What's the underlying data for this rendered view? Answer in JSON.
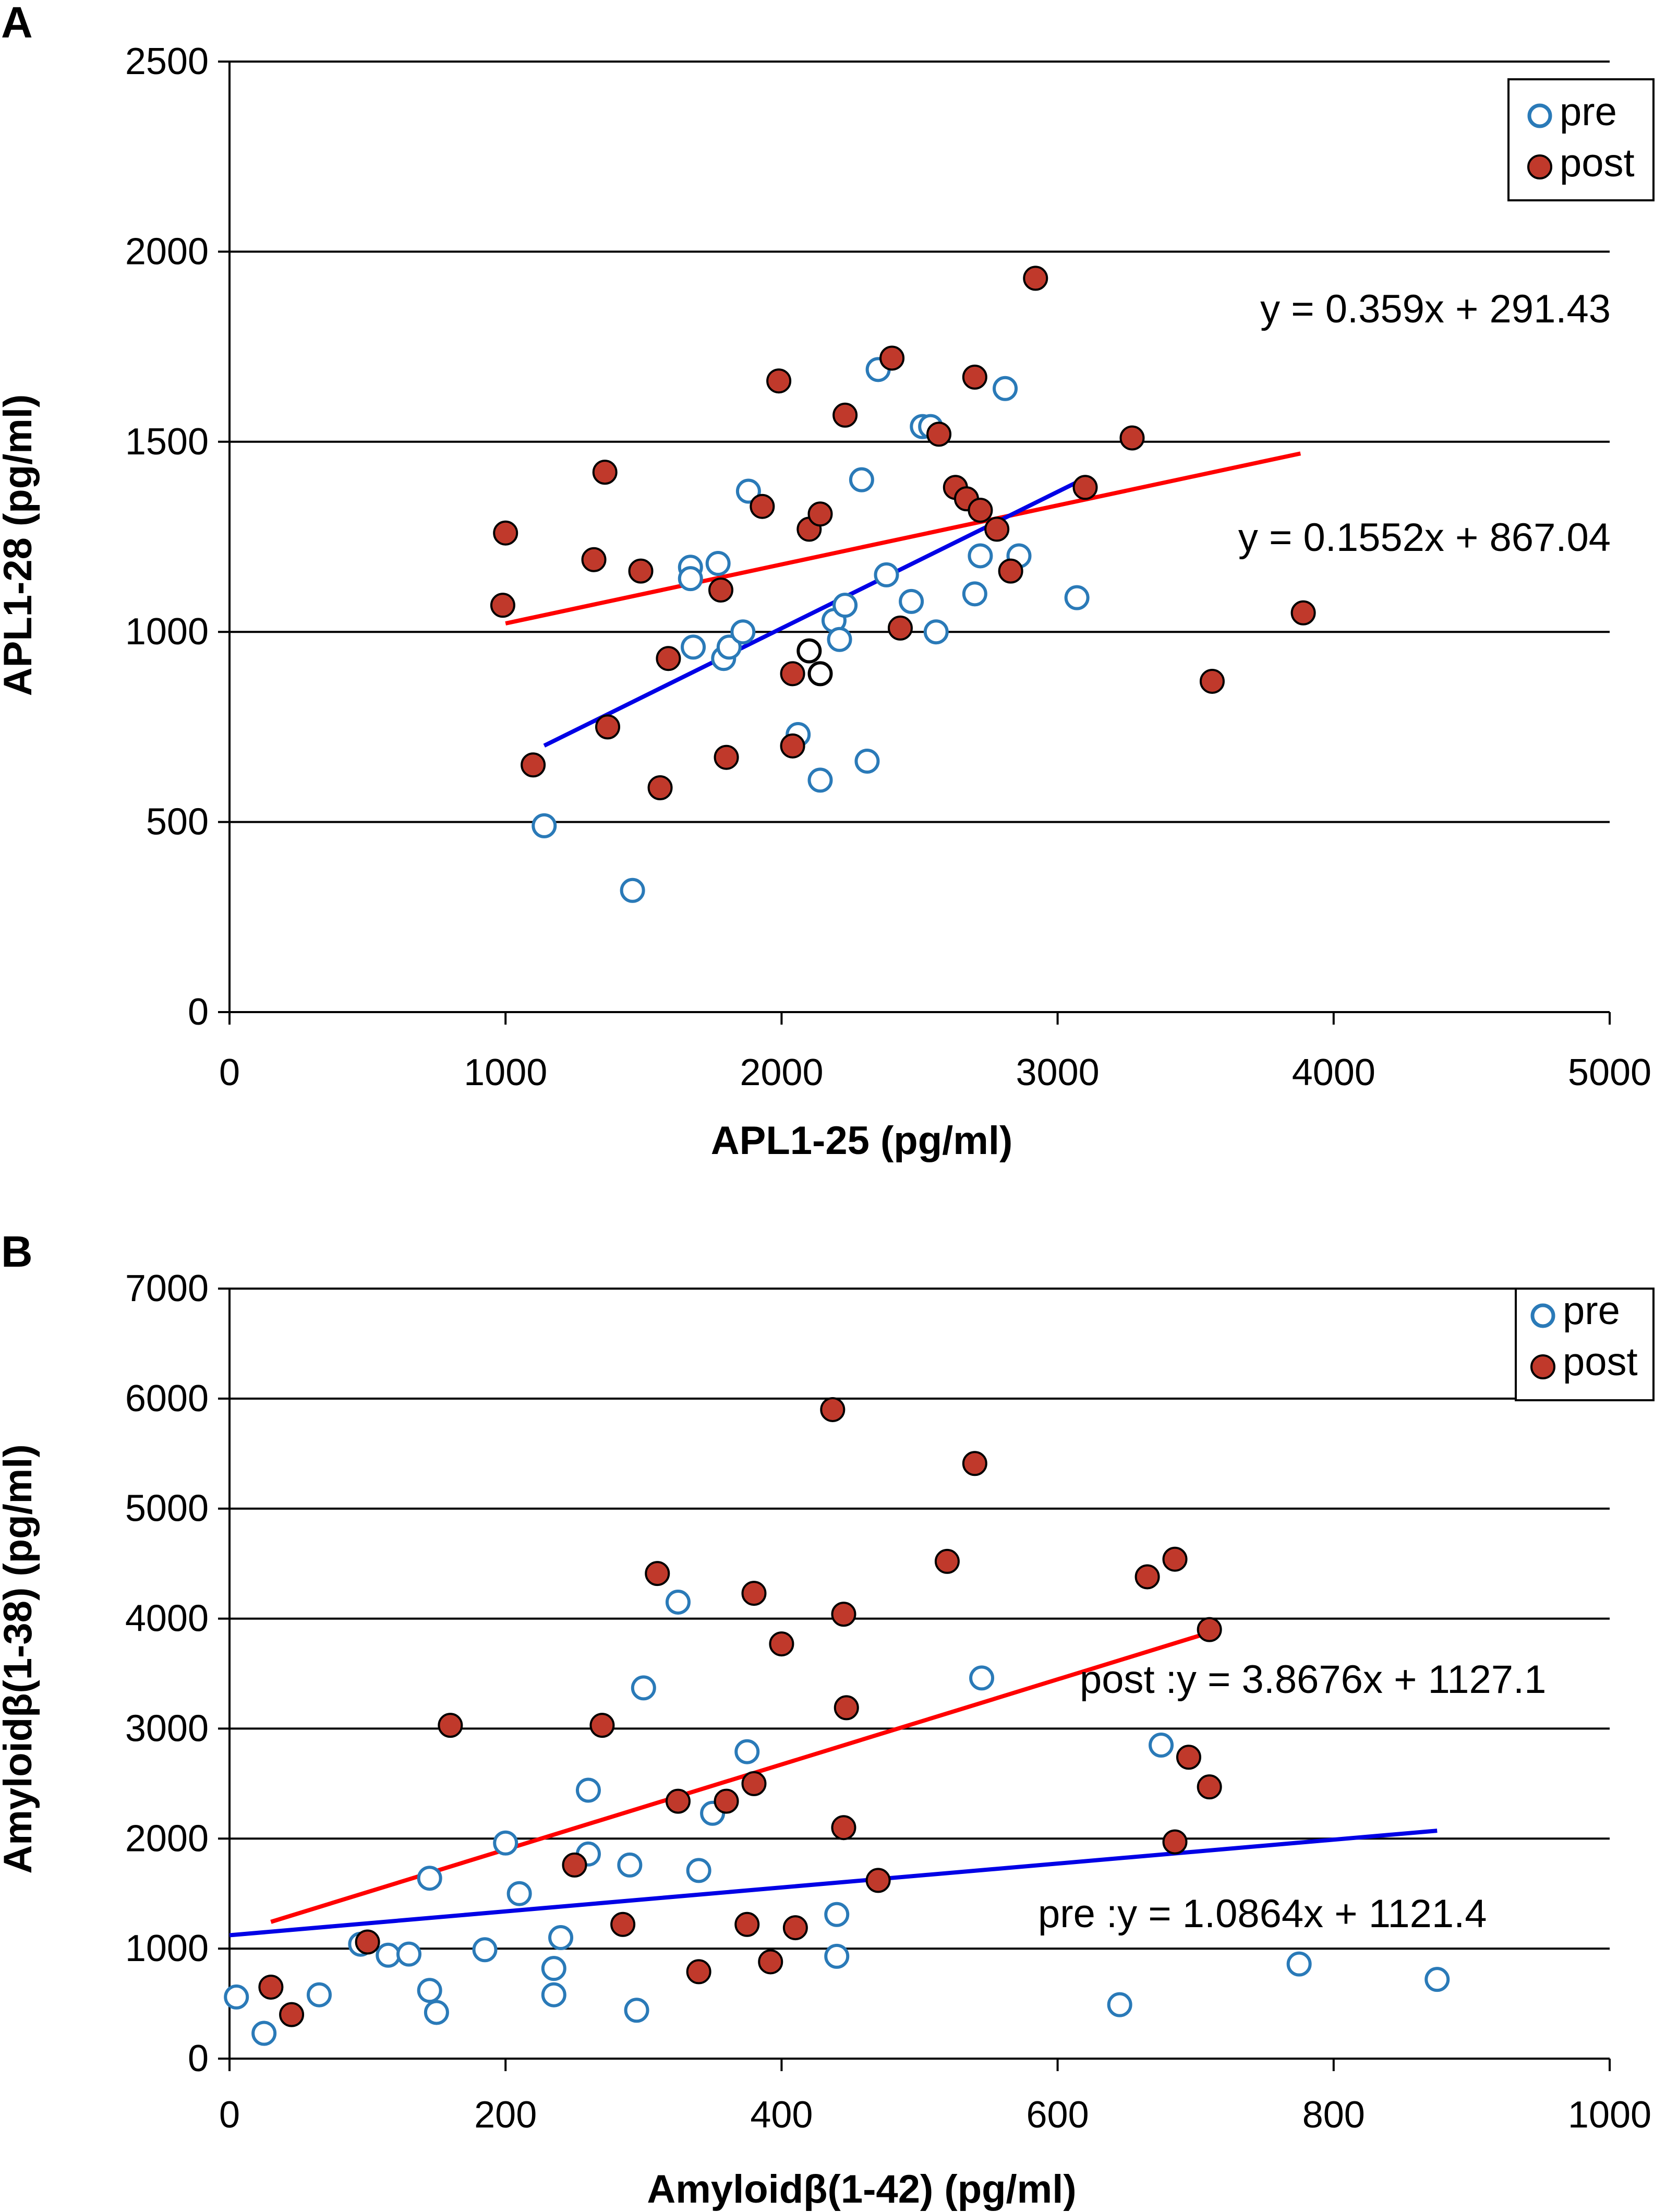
{
  "chart_data": [
    {
      "type": "scatter",
      "panel_label": "A",
      "xlabel": "APL1-25  (pg/ml)",
      "ylabel": "APL1-28  (pg/ml)",
      "xlim": [
        0,
        5000
      ],
      "ylim": [
        0,
        2500
      ],
      "xticks": [
        "0",
        "1000",
        "2000",
        "3000",
        "4000",
        "5000"
      ],
      "yticks": [
        "0",
        "500",
        "1000",
        "1500",
        "2000",
        "2500"
      ],
      "grid": "horizontal",
      "legend": {
        "position": "top-right",
        "entries": [
          "pre",
          "post"
        ]
      },
      "series": [
        {
          "name": "pre",
          "marker": "open-circle",
          "color": "#2a7ab8",
          "points": [
            [
              1140,
              490
            ],
            [
              1460,
              320
            ],
            [
              1670,
              1170
            ],
            [
              1670,
              1140
            ],
            [
              1680,
              960
            ],
            [
              1770,
              1180
            ],
            [
              1790,
              930
            ],
            [
              1810,
              960
            ],
            [
              1860,
              1000
            ],
            [
              1880,
              1370
            ],
            [
              2060,
              730
            ],
            [
              2140,
              610
            ],
            [
              2190,
              1030
            ],
            [
              2210,
              980
            ],
            [
              2230,
              1070
            ],
            [
              2290,
              1400
            ],
            [
              2310,
              660
            ],
            [
              2350,
              1690
            ],
            [
              2380,
              1150
            ],
            [
              2470,
              1080
            ],
            [
              2510,
              1540
            ],
            [
              2540,
              1540
            ],
            [
              2560,
              1000
            ],
            [
              2700,
              1100
            ],
            [
              2720,
              1200
            ],
            [
              2810,
              1640
            ],
            [
              2860,
              1200
            ],
            [
              3070,
              1090
            ]
          ]
        },
        {
          "name": "post",
          "marker": "filled-circle",
          "color": "#c0392b",
          "points": [
            [
              990,
              1070
            ],
            [
              1000,
              1260
            ],
            [
              1100,
              650
            ],
            [
              1320,
              1190
            ],
            [
              1360,
              1420
            ],
            [
              1370,
              750
            ],
            [
              1490,
              1160
            ],
            [
              1560,
              590
            ],
            [
              1590,
              930
            ],
            [
              1780,
              1110
            ],
            [
              1800,
              670
            ],
            [
              1930,
              1330
            ],
            [
              1990,
              1660
            ],
            [
              2040,
              890
            ],
            [
              2040,
              700
            ],
            [
              2100,
              1270
            ],
            [
              2140,
              1310
            ],
            [
              2230,
              1570
            ],
            [
              2400,
              1720
            ],
            [
              2430,
              1010
            ],
            [
              2570,
              1520
            ],
            [
              2630,
              1380
            ],
            [
              2670,
              1350
            ],
            [
              2700,
              1670
            ],
            [
              2720,
              1320
            ],
            [
              2780,
              1270
            ],
            [
              2830,
              1160
            ],
            [
              2920,
              1930
            ],
            [
              3100,
              1380
            ],
            [
              3270,
              1510
            ],
            [
              3560,
              870
            ],
            [
              3890,
              1050
            ]
          ]
        },
        {
          "name": "unlabeled",
          "marker": "open-circle",
          "color": "#000000",
          "points": [
            [
              2100,
              950
            ],
            [
              2140,
              890
            ]
          ]
        }
      ],
      "trendlines": [
        {
          "series": "post",
          "color": "#ff0000",
          "x_range": [
            1000,
            3880
          ],
          "slope": 0.1552,
          "intercept": 867.04,
          "equation": "y = 0.1552x + 867.04"
        },
        {
          "series": "pre",
          "color": "#0000e6",
          "x_range": [
            1140,
            3070
          ],
          "slope": 0.359,
          "intercept": 291.43,
          "equation": "y = 0.359x + 291.43"
        }
      ]
    },
    {
      "type": "scatter",
      "panel_label": "B",
      "xlabel": "Amyloidβ(1-42)  (pg/ml)",
      "ylabel": "Amyloidβ(1-38)  (pg/ml)",
      "xlim": [
        0,
        1000
      ],
      "ylim": [
        0,
        7000
      ],
      "xticks": [
        "0",
        "200",
        "400",
        "600",
        "800",
        "1000"
      ],
      "yticks": [
        "0",
        "1000",
        "2000",
        "3000",
        "4000",
        "5000",
        "6000",
        "7000"
      ],
      "grid": "horizontal",
      "legend": {
        "position": "top-right",
        "entries": [
          "pre",
          "post"
        ]
      },
      "series": [
        {
          "name": "pre",
          "marker": "open-circle",
          "color": "#2a7ab8",
          "points": [
            [
              5,
              560
            ],
            [
              25,
              230
            ],
            [
              65,
              580
            ],
            [
              95,
              1040
            ],
            [
              115,
              940
            ],
            [
              130,
              950
            ],
            [
              145,
              1640
            ],
            [
              145,
              620
            ],
            [
              150,
              420
            ],
            [
              185,
              990
            ],
            [
              200,
              1960
            ],
            [
              210,
              1500
            ],
            [
              235,
              820
            ],
            [
              235,
              580
            ],
            [
              240,
              1100
            ],
            [
              260,
              2440
            ],
            [
              260,
              1860
            ],
            [
              290,
              1760
            ],
            [
              295,
              440
            ],
            [
              300,
              3370
            ],
            [
              325,
              4150
            ],
            [
              340,
              1710
            ],
            [
              350,
              2230
            ],
            [
              375,
              2790
            ],
            [
              440,
              930
            ],
            [
              440,
              1310
            ],
            [
              545,
              3460
            ],
            [
              645,
              490
            ],
            [
              675,
              2850
            ],
            [
              775,
              860
            ],
            [
              875,
              720
            ]
          ]
        },
        {
          "name": "post",
          "marker": "filled-circle",
          "color": "#c0392b",
          "points": [
            [
              30,
              650
            ],
            [
              45,
              400
            ],
            [
              100,
              1060
            ],
            [
              160,
              3030
            ],
            [
              250,
              1760
            ],
            [
              270,
              3030
            ],
            [
              285,
              1220
            ],
            [
              310,
              4410
            ],
            [
              325,
              2340
            ],
            [
              340,
              790
            ],
            [
              360,
              2340
            ],
            [
              375,
              1220
            ],
            [
              380,
              2500
            ],
            [
              380,
              4230
            ],
            [
              400,
              3770
            ],
            [
              410,
              1190
            ],
            [
              392,
              880
            ],
            [
              437,
              5900
            ],
            [
              445,
              4040
            ],
            [
              445,
              2100
            ],
            [
              447,
              3190
            ],
            [
              470,
              1620
            ],
            [
              520,
              4520
            ],
            [
              540,
              5410
            ],
            [
              665,
              4380
            ],
            [
              685,
              4540
            ],
            [
              685,
              1970
            ],
            [
              695,
              2740
            ],
            [
              710,
              2470
            ],
            [
              710,
              3900
            ]
          ]
        }
      ],
      "trendlines": [
        {
          "series": "post",
          "color": "#ff0000",
          "x_range": [
            30,
            710
          ],
          "slope": 3.8676,
          "intercept": 1127.1,
          "equation": "post :y = 3.8676x + 1127.1"
        },
        {
          "series": "pre",
          "color": "#0000e6",
          "x_range": [
            0,
            875
          ],
          "slope": 1.0864,
          "intercept": 1121.4,
          "equation": "pre :y = 1.0864x + 1121.4"
        }
      ]
    }
  ]
}
